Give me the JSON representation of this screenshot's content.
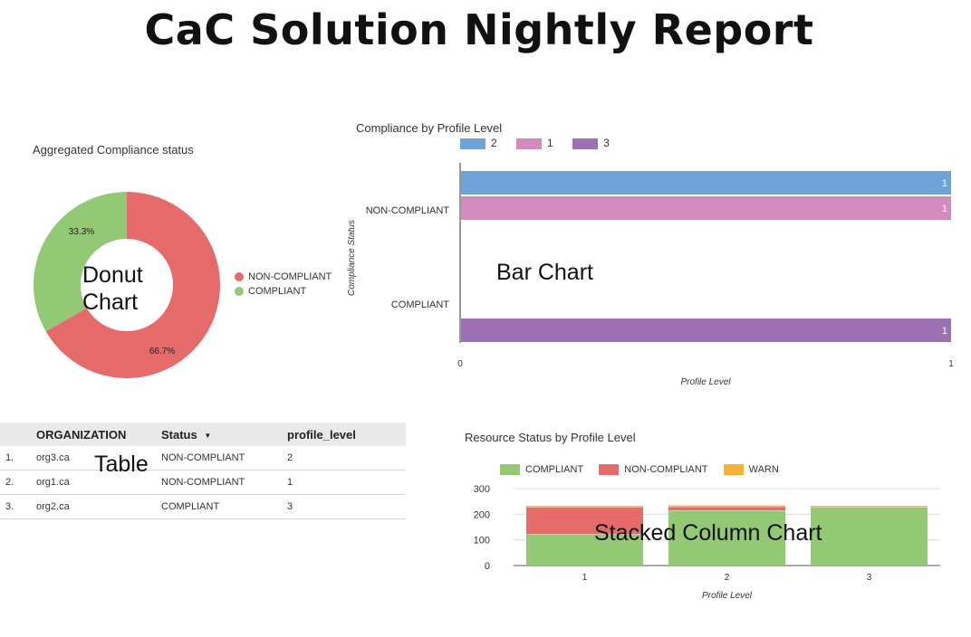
{
  "page_title": "CaC Solution Nightly Report",
  "colors": {
    "red": "#e56b6b",
    "green": "#93c874",
    "blue": "#6fa3d8",
    "pink": "#d38bbf",
    "purple": "#9d72b4",
    "orange": "#f4b13c"
  },
  "donut": {
    "overlay_line1": "Donut",
    "overlay_line2": "Chart"
  },
  "bar": {
    "overlay": "Bar Chart"
  },
  "table": {
    "overlay": "Table",
    "columns": [
      "ORGANIZATION",
      "Status",
      "profile_level"
    ],
    "sort_icon": "sort-desc-icon",
    "rows": [
      {
        "index": "1.",
        "organization": "org3.ca",
        "status": "NON-COMPLIANT",
        "profile_level": "2"
      },
      {
        "index": "2.",
        "organization": "org1.ca",
        "status": "NON-COMPLIANT",
        "profile_level": "1"
      },
      {
        "index": "3.",
        "organization": "org2.ca",
        "status": "COMPLIANT",
        "profile_level": "3"
      }
    ]
  },
  "stacked": {
    "overlay": "Stacked Column Chart"
  },
  "chart_data": [
    {
      "id": "donut",
      "type": "pie",
      "title": "Aggregated Compliance status",
      "donut": true,
      "slices": [
        {
          "label": "NON-COMPLIANT",
          "value": 66.7,
          "display": "66.7%",
          "color": "#e56b6b"
        },
        {
          "label": "COMPLIANT",
          "value": 33.3,
          "display": "33.3%",
          "color": "#93c874"
        }
      ],
      "legend_position": "right"
    },
    {
      "id": "bar",
      "type": "bar",
      "orientation": "horizontal",
      "title": "Compliance by Profile Level",
      "xlabel": "Profile Level",
      "ylabel": "Compliance Status",
      "categories": [
        "NON-COMPLIANT",
        "COMPLIANT"
      ],
      "series": [
        {
          "name": "2",
          "color": "#6fa3d8",
          "values": [
            1,
            null
          ]
        },
        {
          "name": "1",
          "color": "#d38bbf",
          "values": [
            1,
            null
          ]
        },
        {
          "name": "3",
          "color": "#9d72b4",
          "values": [
            null,
            1
          ]
        }
      ],
      "xlim": [
        0,
        1
      ],
      "xticks": [
        "0",
        "1"
      ],
      "legend_position": "top"
    },
    {
      "id": "stacked",
      "type": "bar",
      "stacked": true,
      "title": "Resource Status by Profile Level",
      "xlabel": "Profile Level",
      "categories": [
        "1",
        "2",
        "3"
      ],
      "series": [
        {
          "name": "COMPLIANT",
          "color": "#93c874",
          "values": [
            122,
            215,
            228
          ]
        },
        {
          "name": "NON-COMPLIANT",
          "color": "#e56b6b",
          "values": [
            106,
            15,
            0
          ]
        },
        {
          "name": "WARN",
          "color": "#f4b13c",
          "values": [
            6,
            6,
            6
          ]
        }
      ],
      "ylim": [
        0,
        300
      ],
      "yticks": [
        "0",
        "100",
        "200",
        "300"
      ],
      "grid": true,
      "legend_position": "top"
    }
  ]
}
